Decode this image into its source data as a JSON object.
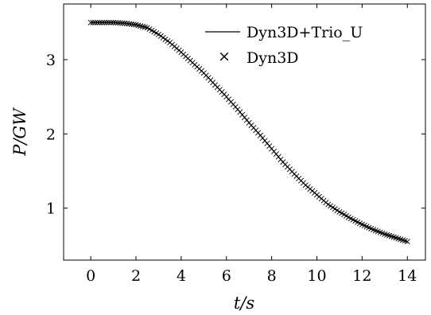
{
  "chart_data": {
    "type": "line",
    "xlabel": "t/s",
    "ylabel": "P/GW",
    "xlim": [
      -1.2,
      14.8
    ],
    "ylim": [
      0.3,
      3.75
    ],
    "xticks": [
      0,
      2,
      4,
      6,
      8,
      10,
      12,
      14
    ],
    "yticks": [
      1,
      2,
      3
    ],
    "legend_position": "top-right",
    "grid": false,
    "series": [
      {
        "name": "Dyn3D+Trio_U",
        "style": "line",
        "color": "#000000",
        "x": [
          0,
          0.5,
          1.0,
          1.5,
          2.0,
          2.5,
          3.0,
          3.5,
          4.0,
          4.5,
          5.0,
          5.5,
          6.0,
          6.5,
          7.0,
          7.5,
          8.0,
          8.5,
          9.0,
          9.5,
          10.0,
          10.5,
          11.0,
          11.5,
          12.0,
          12.5,
          13.0,
          13.5,
          14.0
        ],
        "y": [
          3.5,
          3.5,
          3.5,
          3.49,
          3.47,
          3.43,
          3.34,
          3.23,
          3.1,
          2.96,
          2.82,
          2.66,
          2.5,
          2.33,
          2.15,
          1.98,
          1.8,
          1.62,
          1.46,
          1.31,
          1.18,
          1.05,
          0.95,
          0.86,
          0.78,
          0.71,
          0.65,
          0.6,
          0.55
        ]
      },
      {
        "name": "Dyn3D",
        "style": "markers",
        "marker": "×",
        "color": "#000000",
        "x": [
          0,
          0.5,
          1.0,
          1.5,
          2.0,
          2.5,
          3.0,
          3.5,
          4.0,
          4.5,
          5.0,
          5.5,
          6.0,
          6.5,
          7.0,
          7.5,
          8.0,
          8.5,
          9.0,
          9.5,
          10.0,
          10.5,
          11.0,
          11.5,
          12.0,
          12.5,
          13.0,
          13.5,
          14.0
        ],
        "y": [
          3.5,
          3.5,
          3.5,
          3.49,
          3.47,
          3.43,
          3.34,
          3.23,
          3.1,
          2.96,
          2.82,
          2.66,
          2.5,
          2.33,
          2.15,
          1.98,
          1.8,
          1.62,
          1.46,
          1.31,
          1.18,
          1.05,
          0.95,
          0.86,
          0.78,
          0.71,
          0.65,
          0.6,
          0.55
        ]
      }
    ]
  }
}
